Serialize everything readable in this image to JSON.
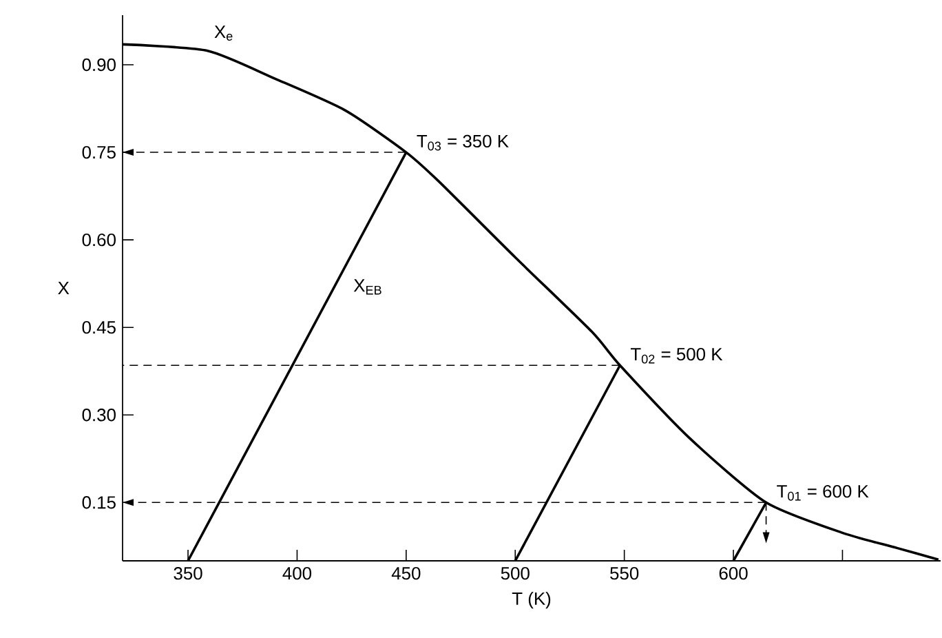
{
  "chart_data": {
    "type": "line",
    "xlabel": "T (K)",
    "ylabel": "X",
    "xlim": [
      320,
      695
    ],
    "ylim": [
      0.05,
      0.985
    ],
    "xticks": [
      350,
      400,
      450,
      500,
      550,
      600,
      {
        "value": 650,
        "label": null
      }
    ],
    "yticks": [
      0.15,
      {
        "value": 0.3,
        "label": "0.30"
      },
      0.45,
      {
        "value": 0.6,
        "label": "0.60"
      },
      0.75,
      {
        "value": 0.9,
        "label": "0.90"
      }
    ],
    "series": [
      {
        "name": "X$_{e}$",
        "color": "#000000",
        "x": [
          320,
          359,
          390,
          422,
          450,
          465,
          500,
          535,
          548,
          580,
          615,
          650,
          675,
          694
        ],
        "values": [
          0.935,
          0.924,
          0.876,
          0.822,
          0.75,
          0.7,
          0.57,
          0.443,
          0.385,
          0.26,
          0.15,
          0.098,
          0.072,
          0.052
        ]
      },
      {
        "name": "X$_{EB}$",
        "color": "#000000",
        "x": [
          350,
          450
        ],
        "values": [
          0.05,
          0.75
        ]
      },
      {
        "color": "#000000",
        "x": [
          500,
          548
        ],
        "values": [
          0.05,
          0.385
        ]
      },
      {
        "color": "#000000",
        "x": [
          600,
          615
        ],
        "values": [
          0.05,
          0.15
        ]
      },
      {
        "color": "#000000",
        "line_style": "dashed",
        "x": [
          450,
          320
        ],
        "values": [
          0.75,
          0.75
        ]
      },
      {
        "color": "#000000",
        "line_style": "dashed",
        "x": [
          548,
          430,
          320
        ],
        "values": [
          0.385,
          0.385,
          0.385
        ]
      },
      {
        "color": "#000000",
        "line_style": "dashed",
        "x": [
          615,
          320
        ],
        "values": [
          0.15,
          0.15
        ]
      },
      {
        "color": "#000000",
        "line_style": "dashed",
        "x": [
          615,
          615
        ],
        "values": [
          0.15,
          0.08
        ]
      }
    ],
    "annotations": [
      {
        "text": "T$_{03}$ = 350 K",
        "x": 450,
        "y": 0.75
      },
      {
        "text": "T$_{02}$ = 500 K",
        "x": 548,
        "y": 0.385
      },
      {
        "text": "T$_{01}$ = 600 K",
        "x": 615,
        "y": 0.15
      }
    ],
    "grid": false
  }
}
